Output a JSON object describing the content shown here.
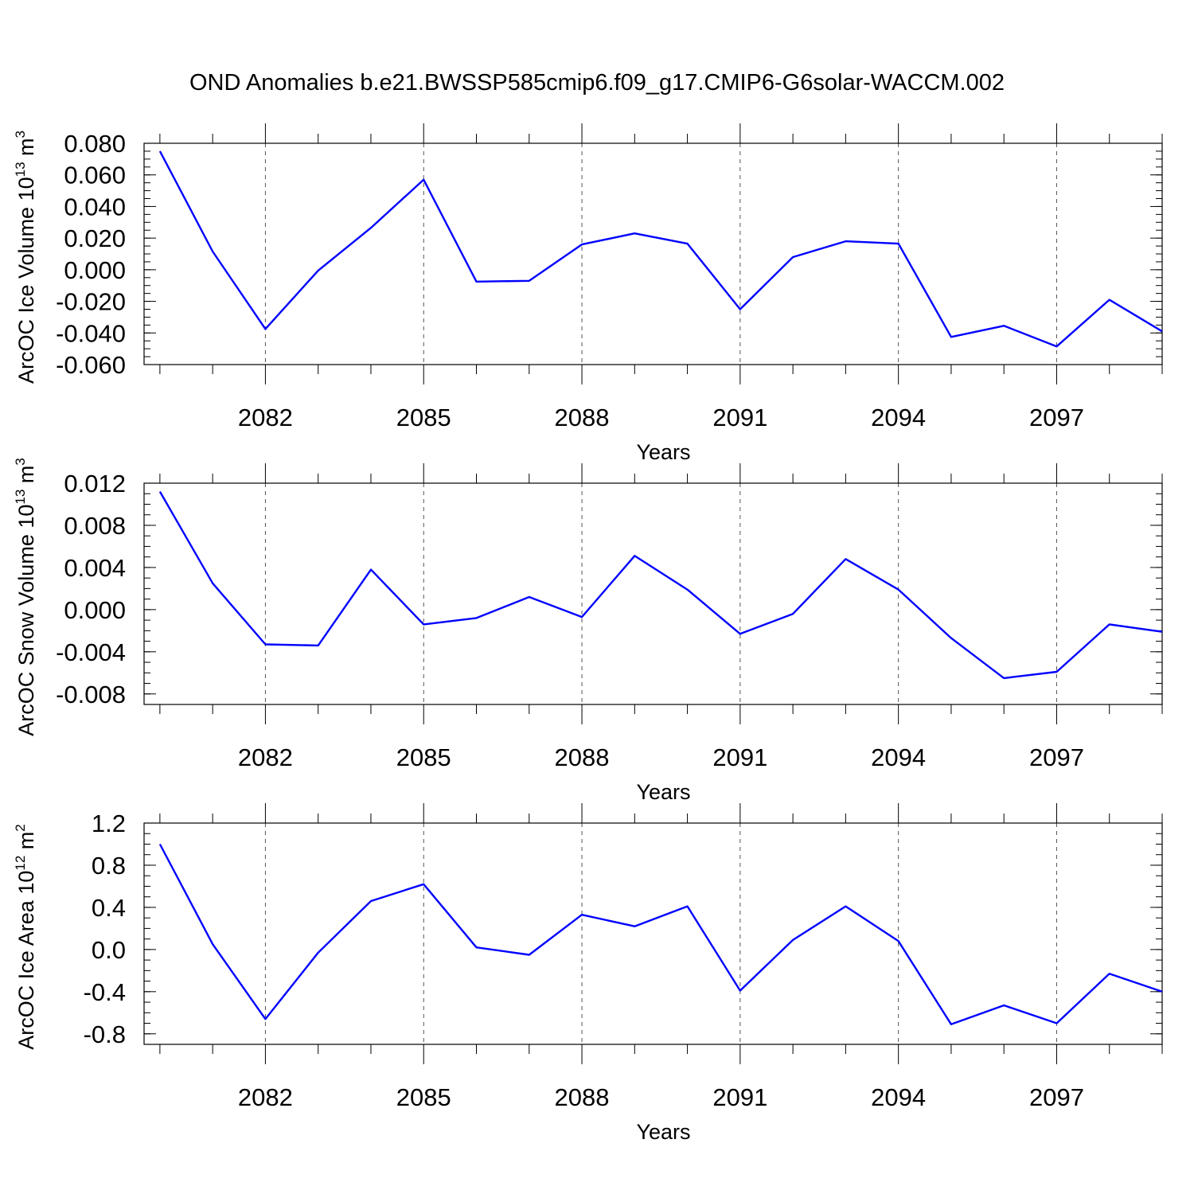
{
  "title": "OND Anomalies b.e21.BWSSP585cmip6.f09_g17.CMIP6-G6solar-WACCM.002",
  "line_color": "#0000ff",
  "chart_data": [
    {
      "type": "line",
      "ylabel": "ArcOC Ice Volume 10",
      "ylabel_exp": "13",
      "ylabel_unit": " m",
      "ylabel_unit_exp": "3",
      "xlabel": "Years",
      "xlim": [
        2079.7,
        2099
      ],
      "ylim": [
        -0.06,
        0.08
      ],
      "yticks": [
        0.08,
        0.06,
        0.04,
        0.02,
        0.0,
        -0.02,
        -0.04,
        -0.06
      ],
      "ytick_labels": [
        "0.080",
        "0.060",
        "0.040",
        "0.020",
        "0.000",
        "-0.020",
        "-0.040",
        "-0.060"
      ],
      "yminor": 0.005,
      "xticks": [
        2082,
        2085,
        2088,
        2091,
        2094,
        2097
      ],
      "xtick_labels": [
        "2082",
        "2085",
        "2088",
        "2091",
        "2094",
        "2097"
      ],
      "x": [
        2080,
        2081,
        2082,
        2083,
        2084,
        2085,
        2086,
        2087,
        2088,
        2089,
        2090,
        2091,
        2092,
        2093,
        2094,
        2095,
        2096,
        2097,
        2098,
        2099
      ],
      "values": [
        0.075,
        0.0115,
        -0.0375,
        -0.0005,
        0.0265,
        0.057,
        -0.0075,
        -0.007,
        0.016,
        0.023,
        0.0165,
        -0.025,
        0.008,
        0.018,
        0.0165,
        -0.0425,
        -0.0355,
        -0.0485,
        -0.019,
        -0.039
      ]
    },
    {
      "type": "line",
      "ylabel": "ArcOC Snow Volume 10",
      "ylabel_exp": "13",
      "ylabel_unit": " m",
      "ylabel_unit_exp": "3",
      "xlabel": "Years",
      "xlim": [
        2079.7,
        2099
      ],
      "ylim": [
        -0.009,
        0.012
      ],
      "yticks": [
        0.012,
        0.008,
        0.004,
        0.0,
        -0.004,
        -0.008
      ],
      "ytick_labels": [
        "0.012",
        "0.008",
        "0.004",
        "0.000",
        "-0.004",
        "-0.008"
      ],
      "yminor": 0.001,
      "xticks": [
        2082,
        2085,
        2088,
        2091,
        2094,
        2097
      ],
      "xtick_labels": [
        "2082",
        "2085",
        "2088",
        "2091",
        "2094",
        "2097"
      ],
      "x": [
        2080,
        2081,
        2082,
        2083,
        2084,
        2085,
        2086,
        2087,
        2088,
        2089,
        2090,
        2091,
        2092,
        2093,
        2094,
        2095,
        2096,
        2097,
        2098,
        2099
      ],
      "values": [
        0.0112,
        0.0025,
        -0.0033,
        -0.0034,
        0.0038,
        -0.0014,
        -0.0008,
        0.0012,
        -0.0007,
        0.0051,
        0.0019,
        -0.0023,
        -0.0004,
        0.0048,
        0.0019,
        -0.0027,
        -0.0065,
        -0.0059,
        -0.0014,
        -0.0021
      ]
    },
    {
      "type": "line",
      "ylabel": "ArcOC Ice Area 10",
      "ylabel_exp": "12",
      "ylabel_unit": " m",
      "ylabel_unit_exp": "2",
      "xlabel": "Years",
      "xlim": [
        2079.7,
        2099
      ],
      "ylim": [
        -0.9,
        1.2
      ],
      "yticks": [
        1.2,
        0.8,
        0.4,
        0.0,
        -0.4,
        -0.8
      ],
      "ytick_labels": [
        "1.2",
        "0.8",
        "0.4",
        "0.0",
        "-0.4",
        "-0.8"
      ],
      "yminor": 0.1,
      "xticks": [
        2082,
        2085,
        2088,
        2091,
        2094,
        2097
      ],
      "xtick_labels": [
        "2082",
        "2085",
        "2088",
        "2091",
        "2094",
        "2097"
      ],
      "x": [
        2080,
        2081,
        2082,
        2083,
        2084,
        2085,
        2086,
        2087,
        2088,
        2089,
        2090,
        2091,
        2092,
        2093,
        2094,
        2095,
        2096,
        2097,
        2098,
        2099
      ],
      "values": [
        1.0,
        0.05,
        -0.66,
        -0.03,
        0.46,
        0.62,
        0.02,
        -0.05,
        0.33,
        0.22,
        0.41,
        -0.39,
        0.09,
        0.41,
        0.08,
        -0.71,
        -0.53,
        -0.7,
        -0.23,
        -0.4
      ]
    }
  ]
}
